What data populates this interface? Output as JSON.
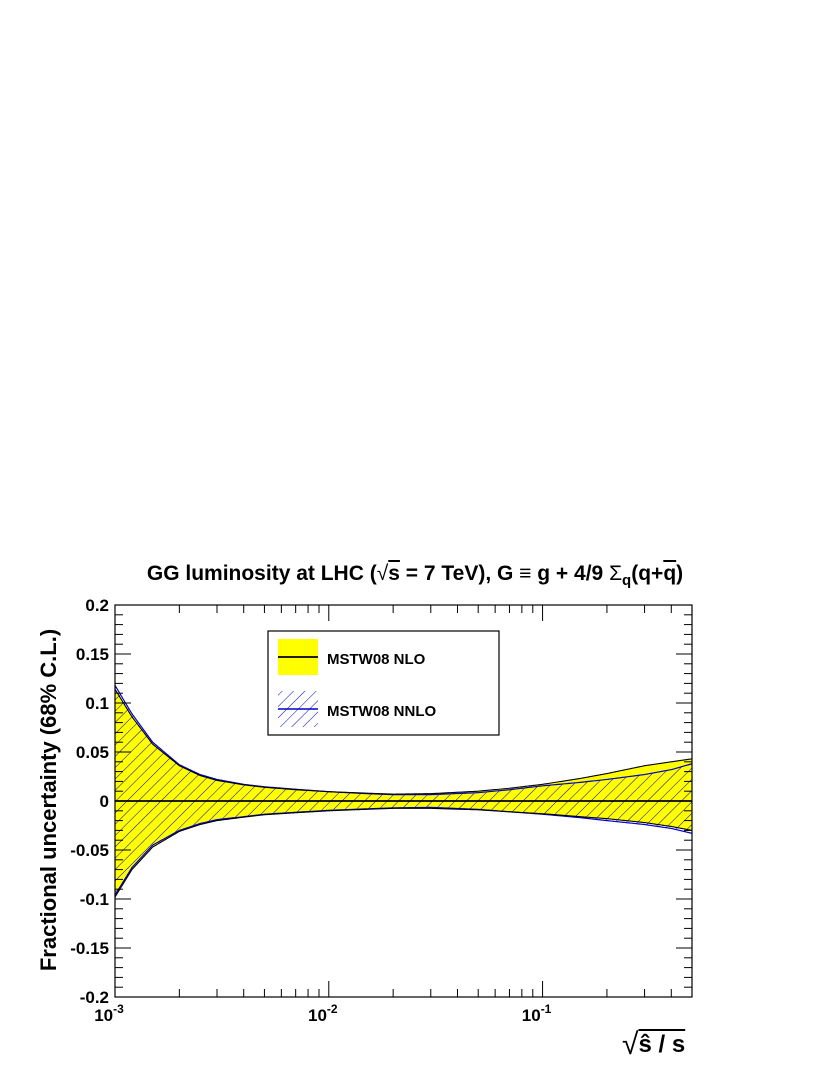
{
  "title": "GG luminosity at LHC (√s = 7 TeV), G ≡ g + 4/9 Σq(q+q̅)",
  "chart_data": {
    "type": "area",
    "title": "GG luminosity at LHC (√s = 7 TeV), G ≡ g + 4/9 Σq(q+q̅)",
    "xlabel": "√(ŝ / s)",
    "ylabel": "Fractional uncertainty (68% C.L.)",
    "xscale": "log",
    "xlim": [
      0.001,
      0.5
    ],
    "ylim": [
      -0.2,
      0.2
    ],
    "x_tick_labels": [
      "10^-3",
      "10^-2",
      "10^-1"
    ],
    "y_tick_labels": [
      "-0.2",
      "-0.15",
      "-0.1",
      "-0.05",
      "0",
      "0.05",
      "0.1",
      "0.15",
      "0.2"
    ],
    "legend_position": "top-center",
    "series": [
      {
        "name": "MSTW08 NLO",
        "style": "filled band with central line",
        "color": "#ffff00",
        "x": [
          0.001,
          0.0012,
          0.0015,
          0.002,
          0.0025,
          0.003,
          0.004,
          0.005,
          0.007,
          0.01,
          0.015,
          0.02,
          0.03,
          0.05,
          0.07,
          0.1,
          0.15,
          0.2,
          0.3,
          0.4,
          0.5
        ],
        "upper": [
          0.114,
          0.086,
          0.058,
          0.036,
          0.026,
          0.021,
          0.0165,
          0.014,
          0.0115,
          0.0095,
          0.008,
          0.007,
          0.0075,
          0.01,
          0.013,
          0.017,
          0.023,
          0.028,
          0.036,
          0.04,
          0.043
        ],
        "lower": [
          -0.098,
          -0.07,
          -0.047,
          -0.031,
          -0.024,
          -0.02,
          -0.0165,
          -0.014,
          -0.012,
          -0.01,
          -0.0085,
          -0.0075,
          -0.0075,
          -0.009,
          -0.011,
          -0.013,
          -0.016,
          -0.018,
          -0.022,
          -0.026,
          -0.03
        ],
        "central": 0
      },
      {
        "name": "MSTW08 NNLO",
        "style": "hatched band",
        "color": "#0000cc",
        "x": [
          0.001,
          0.0012,
          0.0015,
          0.002,
          0.0025,
          0.003,
          0.004,
          0.005,
          0.007,
          0.01,
          0.015,
          0.02,
          0.03,
          0.05,
          0.07,
          0.1,
          0.15,
          0.2,
          0.3,
          0.4,
          0.5
        ],
        "upper": [
          0.118,
          0.089,
          0.06,
          0.037,
          0.027,
          0.022,
          0.017,
          0.0145,
          0.012,
          0.0095,
          0.0075,
          0.0065,
          0.0065,
          0.0085,
          0.0115,
          0.0155,
          0.019,
          0.022,
          0.027,
          0.032,
          0.038
        ],
        "lower": [
          -0.096,
          -0.068,
          -0.045,
          -0.03,
          -0.023,
          -0.019,
          -0.016,
          -0.0135,
          -0.0115,
          -0.0095,
          -0.008,
          -0.007,
          -0.0065,
          -0.0085,
          -0.011,
          -0.0135,
          -0.017,
          -0.02,
          -0.024,
          -0.028,
          -0.033
        ],
        "central": 0
      }
    ]
  },
  "legend": {
    "items": [
      {
        "label": "MSTW08 NLO"
      },
      {
        "label": "MSTW08 NNLO"
      }
    ]
  },
  "colors": {
    "nlo_fill": "#ffff00",
    "nnlo_hatch": "#0000cc",
    "axis": "#000000"
  }
}
